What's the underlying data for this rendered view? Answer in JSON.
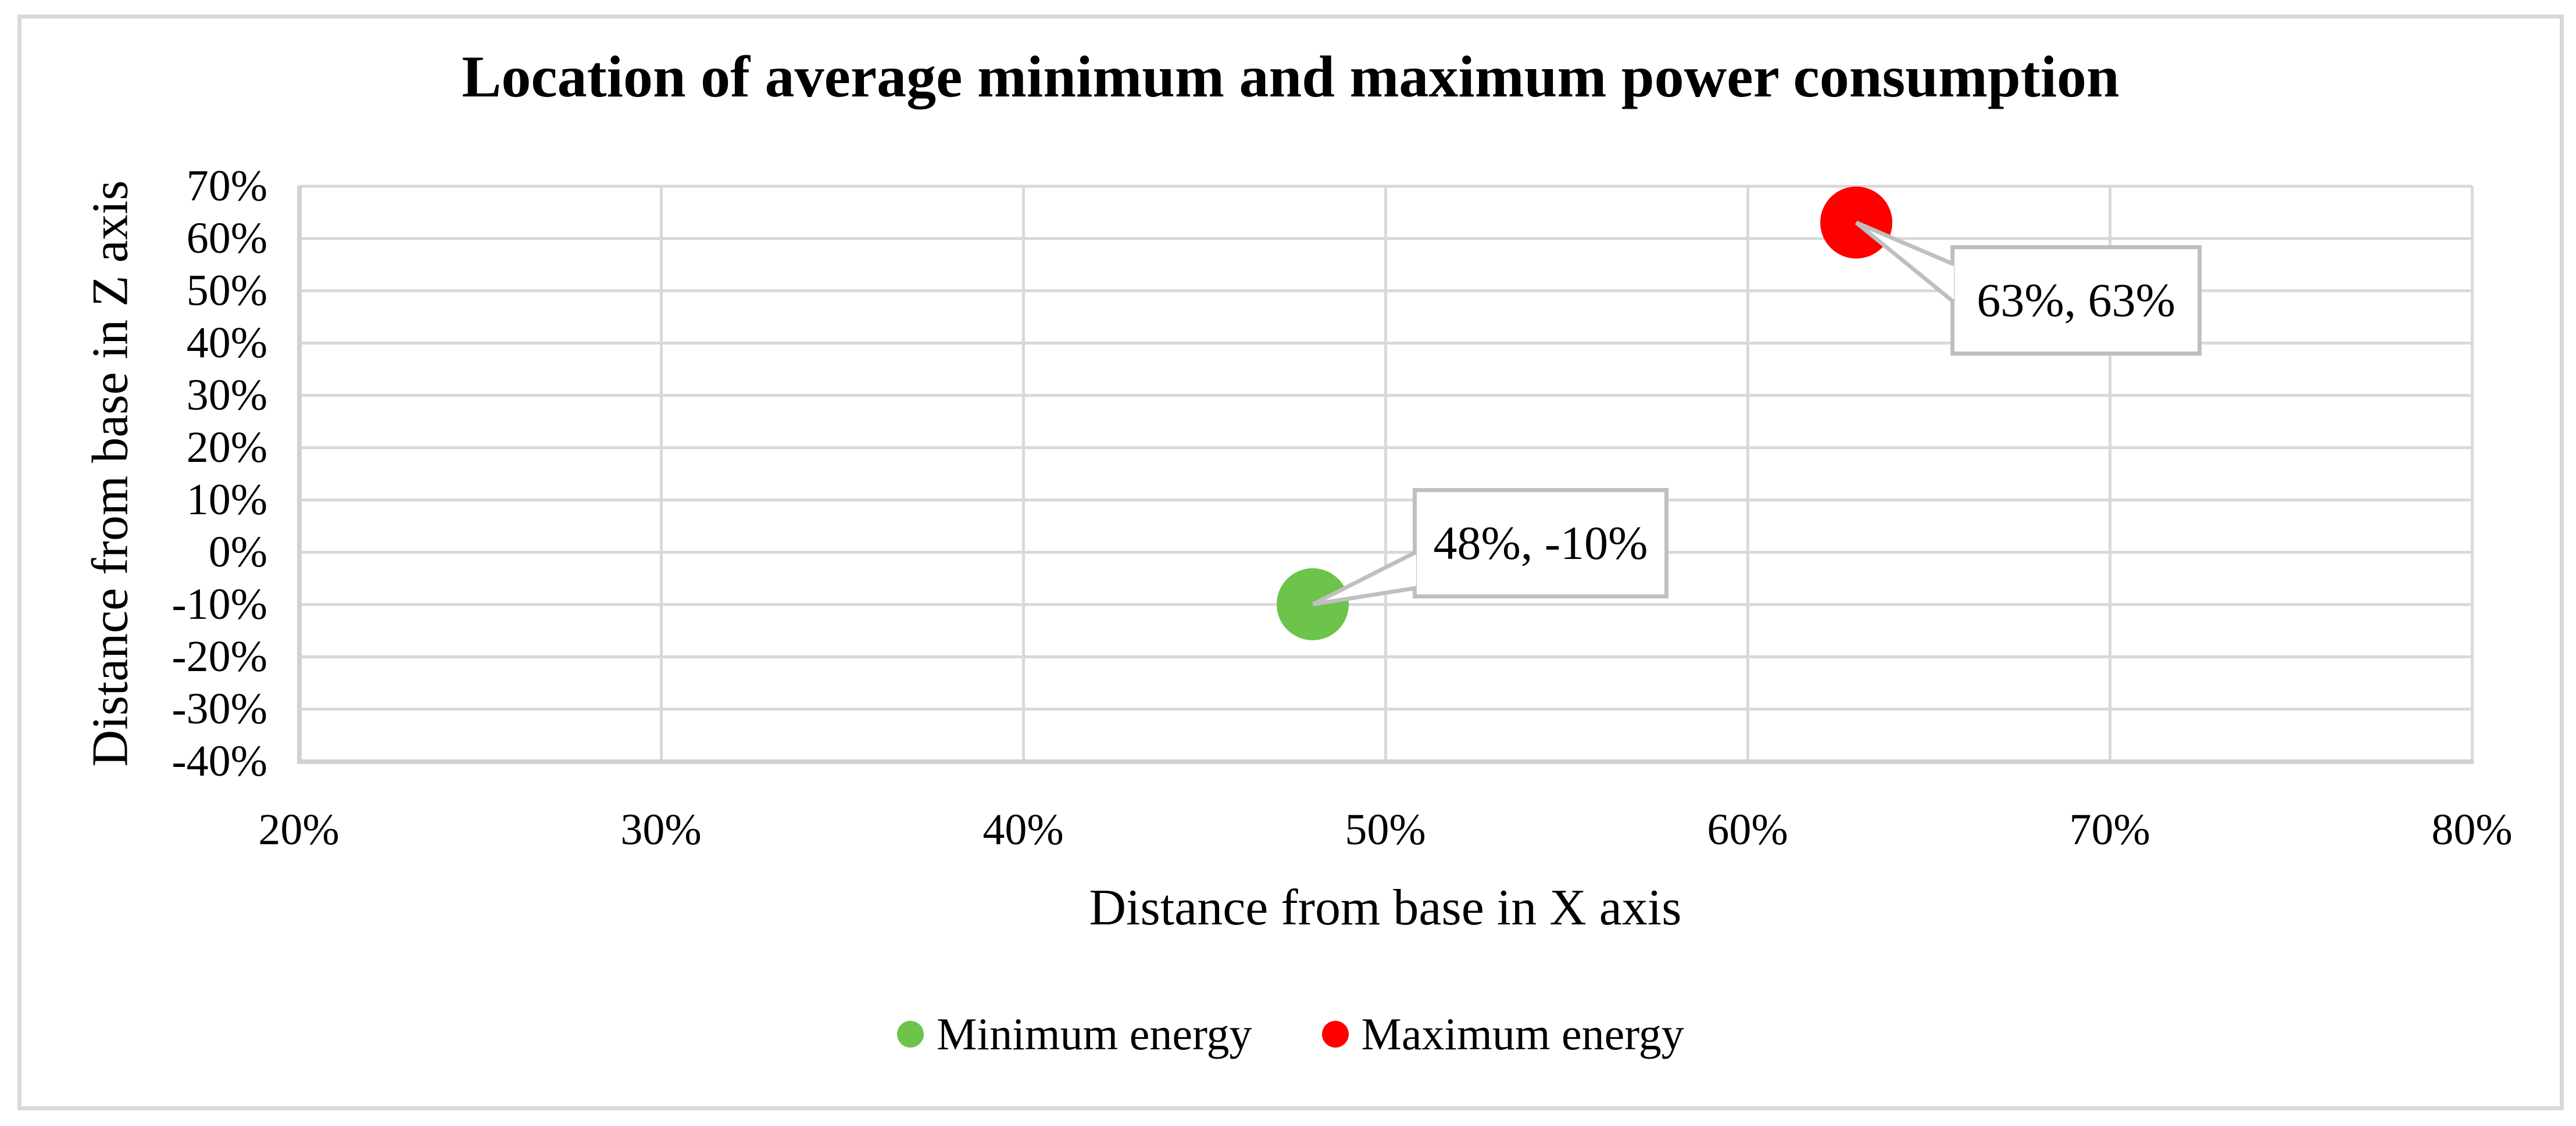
{
  "figure": {
    "background": "#FFFFFF",
    "frame_border_color": "#D9D9D9",
    "gridline_color": "#D9D9D9",
    "axis_line_color": "#D2D2D2",
    "callout_border_color": "#BFBFBF",
    "text_color": "#000000"
  },
  "chart_data": {
    "type": "scatter",
    "title": "Location of average minimum and maximum power consumption",
    "xlabel": "Distance from base in X axis",
    "ylabel": "Distance from base in Z axis",
    "xlim": [
      20,
      80
    ],
    "ylim": [
      -40,
      70
    ],
    "x_ticks": [
      "20%",
      "30%",
      "40%",
      "50%",
      "60%",
      "70%",
      "80%"
    ],
    "y_ticks": [
      "70%",
      "60%",
      "50%",
      "40%",
      "30%",
      "20%",
      "10%",
      "0%",
      "-10%",
      "-20%",
      "-30%",
      "-40%"
    ],
    "grid": true,
    "legend_position": "bottom",
    "series": [
      {
        "name": "Minimum energy",
        "color": "#6CC44A",
        "points": [
          {
            "x": 48,
            "y": -10,
            "label": "48%, -10%"
          }
        ]
      },
      {
        "name": "Maximum energy",
        "color": "#FF0000",
        "points": [
          {
            "x": 63,
            "y": 63,
            "label": "63%, 63%"
          }
        ]
      }
    ]
  }
}
